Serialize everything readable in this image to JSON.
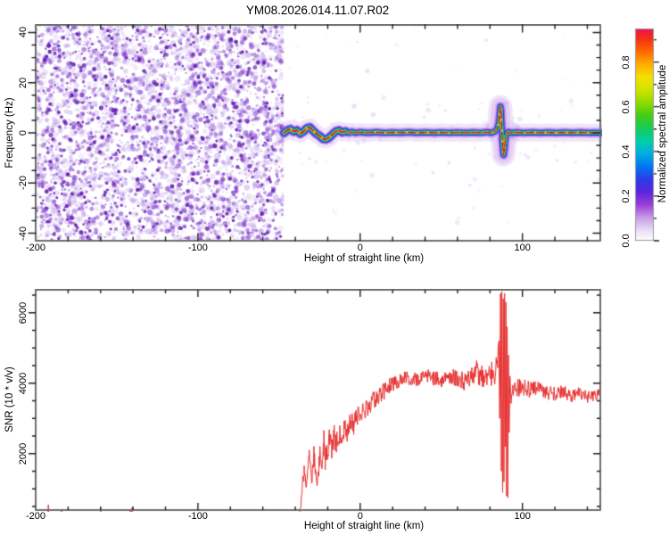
{
  "page": {
    "background": "#ffffff",
    "frame_color": "#6e6e6e",
    "tick_color": "#1f1f1f"
  },
  "chart_data": [
    {
      "type": "heatmap",
      "title": "YM08.2026.014.11.07.R02",
      "xlabel": "Height of straight line (km)",
      "ylabel": "Frequency (Hz)",
      "xlim": [
        -200,
        148
      ],
      "ylim": [
        -43,
        43
      ],
      "x_ticks": [
        -200,
        -100,
        0,
        100
      ],
      "x_minor_step": 20,
      "y_ticks": [
        -40,
        -20,
        0,
        20,
        40
      ],
      "y_minor_step": 5,
      "grid": false,
      "colorbar": {
        "label": "Normalized spectral amplitude",
        "ticks": [
          0.0,
          0.2,
          0.4,
          0.6,
          0.8
        ],
        "tick_labels": [
          "0.0",
          "0.2",
          "0.4",
          "0.6",
          "0.8"
        ],
        "minor_step": 0.1,
        "range": [
          0.0,
          0.95
        ],
        "gradient_stops": [
          [
            0.0,
            "#ffffff"
          ],
          [
            0.05,
            "#eadcf6"
          ],
          [
            0.11,
            "#c79ae6"
          ],
          [
            0.17,
            "#9a3fd8"
          ],
          [
            0.23,
            "#5a25dd"
          ],
          [
            0.29,
            "#2b3ce8"
          ],
          [
            0.35,
            "#0076f2"
          ],
          [
            0.41,
            "#00aee2"
          ],
          [
            0.47,
            "#00cfa8"
          ],
          [
            0.53,
            "#16cc5a"
          ],
          [
            0.59,
            "#44cc16"
          ],
          [
            0.65,
            "#90da00"
          ],
          [
            0.71,
            "#cfe400"
          ],
          [
            0.77,
            "#f4e000"
          ],
          [
            0.83,
            "#ffae00"
          ],
          [
            0.89,
            "#ff6a00"
          ],
          [
            0.95,
            "#f63212"
          ],
          [
            1.0,
            "#ec1254"
          ]
        ]
      },
      "noise_region": {
        "x_range": [
          -200,
          -47
        ],
        "description": "dense incoherent purple speckle noise, normalized amplitude ~0-0.2",
        "palette": [
          "#a578e1",
          "#8746d2",
          "#641eaf"
        ]
      },
      "spectral_line": {
        "description": "narrow echo band centered near 0 Hz from -47 km to 148 km, high amplitude core (0.8-1.0), S-shaped frequency excursion near +88 km",
        "band_colors": {
          "glow": "rgba(165,95,225,0.16)",
          "purple": "rgba(120,40,205,0.55)",
          "blue": "#2a28e0",
          "cyan": "#00b6e8",
          "green": "#25cc35",
          "yellow": "#f2e400",
          "red": "#e8182a"
        },
        "center_freq_hz": [
          [
            -47,
            0
          ],
          [
            -45,
            1
          ],
          [
            -43,
            1.5
          ],
          [
            -41,
            0.5
          ],
          [
            -39,
            1
          ],
          [
            -37,
            -0.3
          ],
          [
            -35,
            0.5
          ],
          [
            -33,
            1.8
          ],
          [
            -31,
            2.2
          ],
          [
            -29,
            0.8
          ],
          [
            -27,
            -0.4
          ],
          [
            -25,
            -1.2
          ],
          [
            -23,
            -2.4
          ],
          [
            -21,
            -2.6
          ],
          [
            -19,
            -1.8
          ],
          [
            -17,
            -0.6
          ],
          [
            -15,
            0.6
          ],
          [
            -13,
            1
          ],
          [
            -11,
            0.2
          ],
          [
            -9,
            0.6
          ],
          [
            -7,
            0
          ],
          [
            -5,
            0.4
          ],
          [
            -3,
            0
          ],
          [
            0,
            0.3
          ],
          [
            5,
            0
          ],
          [
            10,
            0.3
          ],
          [
            15,
            0
          ],
          [
            20,
            0.2
          ],
          [
            25,
            0
          ],
          [
            30,
            0.3
          ],
          [
            35,
            0
          ],
          [
            40,
            0.2
          ],
          [
            45,
            0
          ],
          [
            50,
            0.2
          ],
          [
            55,
            0
          ],
          [
            60,
            0.2
          ],
          [
            65,
            0
          ],
          [
            70,
            0.2
          ],
          [
            74,
            0
          ],
          [
            78,
            0.3
          ],
          [
            81,
            0
          ],
          [
            83,
            0.6
          ],
          [
            84.5,
            1.5
          ],
          [
            85.5,
            4
          ],
          [
            86,
            7.5
          ],
          [
            86.4,
            10.5
          ],
          [
            86.8,
            9
          ],
          [
            87.2,
            3
          ],
          [
            87.6,
            -3
          ],
          [
            88,
            -6.5
          ],
          [
            88.4,
            -8.8
          ],
          [
            88.8,
            -7
          ],
          [
            89.3,
            -3.5
          ],
          [
            90,
            -1
          ],
          [
            91,
            0.3
          ],
          [
            93,
            0
          ],
          [
            97,
            0.2
          ],
          [
            101,
            0
          ],
          [
            106,
            0.2
          ],
          [
            111,
            0
          ],
          [
            116,
            0.2
          ],
          [
            121,
            0
          ],
          [
            126,
            0.2
          ],
          [
            131,
            0
          ],
          [
            136,
            0.2
          ],
          [
            141,
            0
          ],
          [
            145,
            0.1
          ],
          [
            148,
            0
          ]
        ]
      }
    },
    {
      "type": "line",
      "xlabel": "Height of straight line (km)",
      "ylabel": "SNR (10 * v/v)",
      "xlim": [
        -200,
        148
      ],
      "ylim": [
        400,
        6650
      ],
      "x_ticks": [
        -200,
        -100,
        0,
        100
      ],
      "x_minor_step": 20,
      "y_ticks": [
        2000,
        4000,
        6000
      ],
      "y_minor_step": 500,
      "grid": false,
      "series": [
        {
          "name": "SNR",
          "color": "#e62e2e",
          "anchors_xyn": [
            [
              -200,
              140,
              75
            ],
            [
              -180,
              140,
              75
            ],
            [
              -160,
              145,
              75
            ],
            [
              -140,
              140,
              75
            ],
            [
              -120,
              145,
              80
            ],
            [
              -100,
              140,
              75
            ],
            [
              -80,
              145,
              80
            ],
            [
              -60,
              140,
              75
            ],
            [
              -48,
              140,
              75
            ],
            [
              -42,
              135,
              70
            ],
            [
              -38,
              170,
              90
            ],
            [
              -36.5,
              650,
              200
            ],
            [
              -35.5,
              1150,
              220
            ],
            [
              -34.5,
              1500,
              260
            ],
            [
              -33.5,
              1150,
              160
            ],
            [
              -32.5,
              1320,
              220
            ],
            [
              -31.5,
              2050,
              160
            ],
            [
              -30.5,
              1500,
              220
            ],
            [
              -29.5,
              1320,
              260
            ],
            [
              -28.5,
              1900,
              320
            ],
            [
              -27.5,
              1520,
              260
            ],
            [
              -26.5,
              1260,
              220
            ],
            [
              -25.5,
              1620,
              360
            ],
            [
              -24.5,
              2100,
              320
            ],
            [
              -23.5,
              1720,
              320
            ],
            [
              -22.5,
              2300,
              420
            ],
            [
              -21.5,
              1900,
              360
            ],
            [
              -20.5,
              2120,
              420
            ],
            [
              -19,
              2300,
              460
            ],
            [
              -17.5,
              2020,
              420
            ],
            [
              -16,
              2400,
              420
            ],
            [
              -14.5,
              2220,
              360
            ],
            [
              -13,
              2600,
              420
            ],
            [
              -11.5,
              2420,
              360
            ],
            [
              -10,
              2700,
              360
            ],
            [
              -8,
              2620,
              320
            ],
            [
              -6,
              2900,
              320
            ],
            [
              -4,
              2820,
              300
            ],
            [
              -2,
              3080,
              300
            ],
            [
              0,
              3020,
              280
            ],
            [
              3,
              3280,
              280
            ],
            [
              6,
              3400,
              260
            ],
            [
              9,
              3550,
              260
            ],
            [
              12,
              3650,
              250
            ],
            [
              15,
              3800,
              250
            ],
            [
              18,
              3900,
              240
            ],
            [
              21,
              4000,
              230
            ],
            [
              25,
              4080,
              220
            ],
            [
              30,
              4150,
              210
            ],
            [
              35,
              4100,
              210
            ],
            [
              40,
              4200,
              220
            ],
            [
              45,
              4150,
              210
            ],
            [
              50,
              4100,
              220
            ],
            [
              55,
              4200,
              250
            ],
            [
              60,
              4150,
              240
            ],
            [
              64,
              4050,
              260
            ],
            [
              68,
              4200,
              280
            ],
            [
              72,
              4300,
              350
            ],
            [
              75,
              4200,
              310
            ],
            [
              78,
              4100,
              300
            ],
            [
              81,
              4300,
              360
            ],
            [
              83,
              4220,
              320
            ],
            [
              84.5,
              4600,
              400
            ],
            [
              85.5,
              5200,
              0
            ],
            [
              86,
              3000,
              0
            ],
            [
              86.5,
              6550,
              0
            ],
            [
              87,
              1500,
              0
            ],
            [
              87.3,
              6600,
              0
            ],
            [
              87.8,
              900,
              0
            ],
            [
              88.2,
              6400,
              0
            ],
            [
              88.6,
              1200,
              0
            ],
            [
              89,
              6550,
              0
            ],
            [
              89.4,
              2200,
              0
            ],
            [
              89.8,
              6300,
              0
            ],
            [
              90.2,
              800,
              0
            ],
            [
              90.6,
              5600,
              0
            ],
            [
              91,
              750,
              0
            ],
            [
              91.4,
              4800,
              0
            ],
            [
              91.8,
              2600,
              0
            ],
            [
              92.3,
              4200,
              0
            ],
            [
              93,
              3500,
              100
            ],
            [
              94,
              3900,
              260
            ],
            [
              97,
              3850,
              260
            ],
            [
              100,
              3900,
              230
            ],
            [
              105,
              3800,
              230
            ],
            [
              110,
              3850,
              210
            ],
            [
              115,
              3750,
              210
            ],
            [
              120,
              3700,
              200
            ],
            [
              125,
              3750,
              195
            ],
            [
              130,
              3650,
              185
            ],
            [
              135,
              3700,
              185
            ],
            [
              140,
              3600,
              175
            ],
            [
              144,
              3650,
              170
            ],
            [
              148,
              3700,
              165
            ]
          ]
        }
      ]
    }
  ]
}
